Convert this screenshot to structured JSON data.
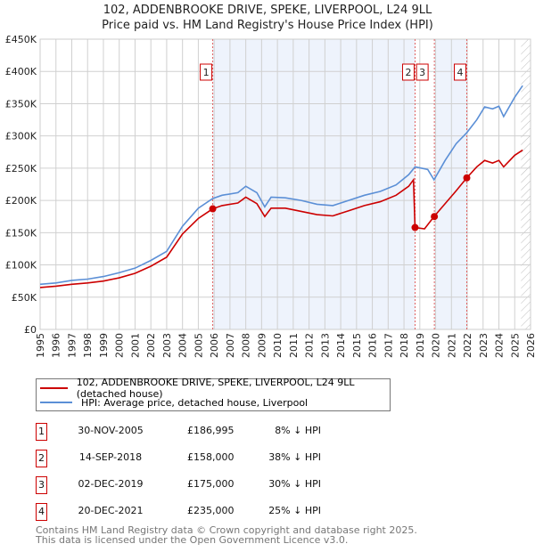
{
  "chart_data": {
    "type": "line",
    "title": "102, ADDENBROOKE DRIVE, SPEKE, LIVERPOOL, L24 9LL",
    "subtitle": "Price paid vs. HM Land Registry's House Price Index (HPI)",
    "xlim": [
      1995,
      2026
    ],
    "ylim": [
      0,
      450000
    ],
    "yticks": [
      {
        "v": 0,
        "l": "£0"
      },
      {
        "v": 50000,
        "l": "£50K"
      },
      {
        "v": 100000,
        "l": "£100K"
      },
      {
        "v": 150000,
        "l": "£150K"
      },
      {
        "v": 200000,
        "l": "£200K"
      },
      {
        "v": 250000,
        "l": "£250K"
      },
      {
        "v": 300000,
        "l": "£300K"
      },
      {
        "v": 350000,
        "l": "£350K"
      },
      {
        "v": 400000,
        "l": "£400K"
      },
      {
        "v": 450000,
        "l": "£450K"
      }
    ],
    "xticks": [
      "1995",
      "1996",
      "1997",
      "1998",
      "1999",
      "2000",
      "2001",
      "2002",
      "2003",
      "2004",
      "2005",
      "2006",
      "2007",
      "2008",
      "2009",
      "2010",
      "2011",
      "2012",
      "2013",
      "2014",
      "2015",
      "2016",
      "2017",
      "2018",
      "2019",
      "2020",
      "2021",
      "2022",
      "2023",
      "2024",
      "2025",
      "2026"
    ],
    "series": [
      {
        "name": "102, ADDENBROOKE DRIVE, SPEKE, LIVERPOOL, L24 9LL (detached house)",
        "color": "#cc0000",
        "points": [
          [
            1995,
            65000
          ],
          [
            1996,
            67000
          ],
          [
            1997,
            70000
          ],
          [
            1998,
            72000
          ],
          [
            1999,
            75000
          ],
          [
            2000,
            80000
          ],
          [
            2001,
            87000
          ],
          [
            2002,
            98000
          ],
          [
            2003,
            112000
          ],
          [
            2004,
            148000
          ],
          [
            2005,
            172000
          ],
          [
            2005.91,
            186995
          ],
          [
            2006.5,
            192000
          ],
          [
            2007.5,
            196000
          ],
          [
            2008,
            205000
          ],
          [
            2008.7,
            195000
          ],
          [
            2009.2,
            175000
          ],
          [
            2009.6,
            188000
          ],
          [
            2010.5,
            188000
          ],
          [
            2011.5,
            183000
          ],
          [
            2012.5,
            178000
          ],
          [
            2013.5,
            176000
          ],
          [
            2014.5,
            184000
          ],
          [
            2015.5,
            192000
          ],
          [
            2016.5,
            198000
          ],
          [
            2017.5,
            208000
          ],
          [
            2018.3,
            222000
          ],
          [
            2018.6,
            232000
          ],
          [
            2018.7,
            158000
          ],
          [
            2019.3,
            156000
          ],
          [
            2019.9,
            175000
          ],
          [
            2020.6,
            195000
          ],
          [
            2021.3,
            215000
          ],
          [
            2021.97,
            235000
          ],
          [
            2022.6,
            252000
          ],
          [
            2023.1,
            262000
          ],
          [
            2023.6,
            258000
          ],
          [
            2024,
            262000
          ],
          [
            2024.3,
            252000
          ],
          [
            2025,
            270000
          ],
          [
            2025.5,
            278000
          ]
        ]
      },
      {
        "name": "HPI: Average price, detached house, Liverpool",
        "color": "#5b8fd6",
        "points": [
          [
            1995,
            70000
          ],
          [
            1996,
            72000
          ],
          [
            1997,
            76000
          ],
          [
            1998,
            78000
          ],
          [
            1999,
            82000
          ],
          [
            2000,
            88000
          ],
          [
            2001,
            95000
          ],
          [
            2002,
            107000
          ],
          [
            2003,
            121000
          ],
          [
            2004,
            160000
          ],
          [
            2005,
            188000
          ],
          [
            2005.91,
            203000
          ],
          [
            2006.5,
            208000
          ],
          [
            2007.5,
            212000
          ],
          [
            2008,
            222000
          ],
          [
            2008.7,
            212000
          ],
          [
            2009.2,
            190000
          ],
          [
            2009.6,
            205000
          ],
          [
            2010.5,
            204000
          ],
          [
            2011.5,
            200000
          ],
          [
            2012.5,
            194000
          ],
          [
            2013.5,
            192000
          ],
          [
            2014.5,
            200000
          ],
          [
            2015.5,
            208000
          ],
          [
            2016.5,
            214000
          ],
          [
            2017.5,
            224000
          ],
          [
            2018.3,
            240000
          ],
          [
            2018.7,
            252000
          ],
          [
            2019.5,
            248000
          ],
          [
            2019.9,
            232000
          ],
          [
            2020.6,
            262000
          ],
          [
            2021.3,
            288000
          ],
          [
            2021.97,
            305000
          ],
          [
            2022.6,
            325000
          ],
          [
            2023.1,
            345000
          ],
          [
            2023.6,
            342000
          ],
          [
            2024,
            346000
          ],
          [
            2024.3,
            330000
          ],
          [
            2025,
            360000
          ],
          [
            2025.5,
            378000
          ]
        ]
      }
    ],
    "sales": [
      {
        "id": "1",
        "x": 2005.91,
        "price": 186995,
        "date": "30-NOV-2005",
        "price_label": "£186,995",
        "hpi": "8% ↓ HPI"
      },
      {
        "id": "2",
        "x": 2018.7,
        "price": 158000,
        "date": "14-SEP-2018",
        "price_label": "£158,000",
        "hpi": "38% ↓ HPI"
      },
      {
        "id": "3",
        "x": 2019.92,
        "price": 175000,
        "date": "02-DEC-2019",
        "price_label": "£175,000",
        "hpi": "30% ↓ HPI"
      },
      {
        "id": "4",
        "x": 2021.97,
        "price": 235000,
        "date": "20-DEC-2021",
        "price_label": "£235,000",
        "hpi": "25% ↓ HPI"
      }
    ],
    "shaded": [
      [
        2005.91,
        2018.7
      ],
      [
        2019.92,
        2021.97
      ]
    ],
    "hatched_from": 2025.4,
    "legend_placement": "below"
  },
  "footer": {
    "line1": "Contains HM Land Registry data © Crown copyright and database right 2025.",
    "line2": "This data is licensed under the Open Government Licence v3.0."
  }
}
